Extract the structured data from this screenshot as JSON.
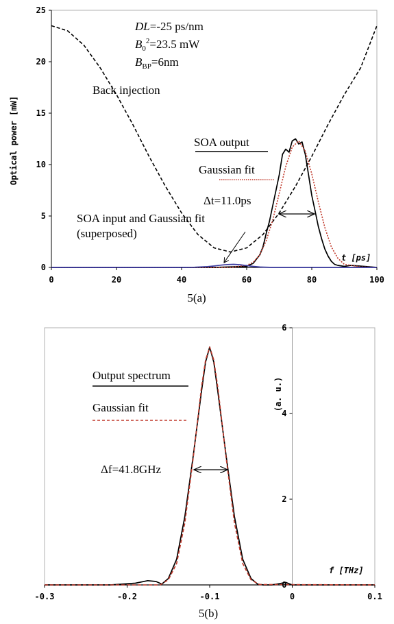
{
  "chart_data": [
    {
      "type": "line",
      "caption": "5(a)",
      "ylabel": "Optical power [mW]",
      "xlabel": "t [ps]",
      "xlim": [
        0,
        100
      ],
      "ylim": [
        0,
        25
      ],
      "xticks": [
        "0",
        "20",
        "40",
        "60",
        "80",
        "100"
      ],
      "yticks": [
        "0",
        "5",
        "10",
        "15",
        "20",
        "25"
      ],
      "params": {
        "dl": {
          "sym": "DL",
          "text": "=-25 ps/nm"
        },
        "b0": {
          "sym": "B",
          "sub": "0",
          "sup": "2",
          "text": "=23.5 mW"
        },
        "bbp": {
          "sym": "B",
          "sub": "BP",
          "text": "=6nm"
        }
      },
      "annotations": {
        "back_injection": "Back injection",
        "soa_output": "SOA output",
        "gaussian_fit": "Gaussian fit",
        "delta_t": "Δt=11.0ps",
        "soa_input_line1": "SOA input and Gaussian fit",
        "soa_input_line2": "(superposed)"
      },
      "series": [
        {
          "name": "Back injection",
          "color": "#000000",
          "style": "dashed",
          "x": [
            0,
            5,
            10,
            15,
            20,
            25,
            30,
            35,
            40,
            45,
            50,
            55,
            60,
            65,
            70,
            75,
            80,
            85,
            90,
            95,
            100
          ],
          "y": [
            23.5,
            23.0,
            21.6,
            19.4,
            16.8,
            13.9,
            10.8,
            7.9,
            5.3,
            3.2,
            1.9,
            1.5,
            1.9,
            3.2,
            5.3,
            7.9,
            10.8,
            13.9,
            16.8,
            19.4,
            23.5
          ]
        },
        {
          "name": "SOA output",
          "color": "#000000",
          "style": "solid",
          "x": [
            0,
            50,
            60,
            62,
            64,
            65,
            66,
            67,
            68,
            69,
            70,
            71,
            72,
            73,
            74,
            75,
            76,
            77,
            78,
            79,
            80,
            81,
            82,
            83,
            84,
            85,
            86,
            87,
            88,
            90,
            92,
            100
          ],
          "y": [
            0,
            0,
            0.1,
            0.4,
            1.2,
            2.0,
            3.3,
            4.5,
            6.0,
            7.5,
            9.0,
            11.0,
            11.5,
            11.2,
            12.3,
            12.5,
            12.0,
            12.2,
            11.0,
            9.0,
            7.0,
            5.5,
            4.0,
            2.8,
            1.8,
            1.1,
            0.6,
            0.3,
            0.2,
            0.1,
            0.2,
            0
          ]
        },
        {
          "name": "Gaussian fit",
          "color": "#c0392b",
          "style": "dotted",
          "x": [
            0,
            55,
            60,
            62,
            64,
            66,
            68,
            70,
            72,
            74,
            76,
            78,
            80,
            82,
            84,
            86,
            88,
            90,
            95,
            100
          ],
          "y": [
            0,
            0,
            0.2,
            0.5,
            1.2,
            2.6,
            4.6,
            7.2,
            9.8,
            11.7,
            12.3,
            11.3,
            9.1,
            6.4,
            3.9,
            2.0,
            0.9,
            0.3,
            0.05,
            0
          ]
        },
        {
          "name": "SOA input and Gaussian fit",
          "color": "#3a3aa0",
          "style": "solid",
          "x": [
            0,
            40,
            44,
            48,
            50,
            52,
            54,
            56,
            58,
            60,
            62,
            64,
            68,
            100
          ],
          "y": [
            0,
            0,
            0.02,
            0.08,
            0.14,
            0.22,
            0.28,
            0.3,
            0.26,
            0.18,
            0.1,
            0.04,
            0,
            0
          ]
        }
      ]
    },
    {
      "type": "line",
      "caption": "5(b)",
      "ylabel": "(a. u.)",
      "xlabel": "f [THz]",
      "xlim": [
        -0.3,
        0.1
      ],
      "ylim": [
        0,
        6
      ],
      "xticks": [
        "-0.3",
        "-0.2",
        "-0.1",
        "0",
        "0.1"
      ],
      "yticks": [
        "0",
        "2",
        "4",
        "6"
      ],
      "annotations": {
        "output_spectrum": "Output spectrum",
        "gaussian_fit": "Gaussian fit",
        "delta_f": "Δf=41.8GHz"
      },
      "series": [
        {
          "name": "Output spectrum",
          "color": "#000000",
          "style": "solid",
          "x": [
            -0.3,
            -0.22,
            -0.19,
            -0.175,
            -0.165,
            -0.158,
            -0.15,
            -0.14,
            -0.13,
            -0.12,
            -0.11,
            -0.105,
            -0.1,
            -0.095,
            -0.09,
            -0.08,
            -0.07,
            -0.06,
            -0.05,
            -0.042,
            -0.035,
            -0.025,
            -0.015,
            -0.008,
            0,
            0.1
          ],
          "y": [
            0,
            0,
            0.04,
            0.1,
            0.08,
            0.02,
            0.15,
            0.6,
            1.6,
            3.0,
            4.5,
            5.2,
            5.55,
            5.2,
            4.5,
            3.0,
            1.6,
            0.6,
            0.15,
            0.02,
            0.0,
            0.0,
            0.03,
            0.06,
            0,
            0
          ]
        },
        {
          "name": "Gaussian fit",
          "color": "#c0392b",
          "style": "dashed",
          "x": [
            -0.3,
            -0.16,
            -0.15,
            -0.14,
            -0.13,
            -0.12,
            -0.11,
            -0.105,
            -0.1,
            -0.095,
            -0.09,
            -0.08,
            -0.07,
            -0.06,
            -0.05,
            -0.04,
            0.1
          ],
          "y": [
            0,
            0,
            0.12,
            0.5,
            1.45,
            2.95,
            4.6,
            5.25,
            5.55,
            5.25,
            4.6,
            2.95,
            1.45,
            0.5,
            0.12,
            0.01,
            0
          ]
        }
      ]
    }
  ]
}
